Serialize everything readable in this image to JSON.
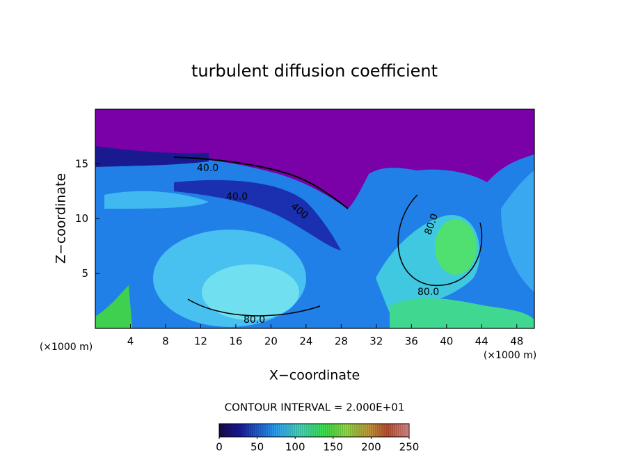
{
  "chart_data": {
    "type": "contour",
    "title": "turbulent diffusion coefficient",
    "x_label": "X−coordinate",
    "y_label": "Z−coordinate",
    "x_unit": "(×1000 m)",
    "y_unit": "(×1000 m)",
    "xlim": [
      0,
      50
    ],
    "ylim": [
      0,
      20
    ],
    "xticks": [
      4,
      8,
      12,
      16,
      20,
      24,
      28,
      32,
      36,
      40,
      44,
      48
    ],
    "yticks": [
      5,
      10,
      15
    ],
    "contour_interval": "CONTOUR INTERVAL = 2.000E+01",
    "contour_labels": [
      "40.0",
      "40.0",
      "400",
      "80.0",
      "80.0",
      "80.0"
    ],
    "colorbar": {
      "lim": [
        0,
        250
      ],
      "ticks": [
        0,
        50,
        100,
        150,
        200,
        250
      ],
      "colors": [
        "#1a0a40",
        "#1a1aa0",
        "#1f6fe0",
        "#3ab4f0",
        "#40e0b0",
        "#40e050",
        "#90e040",
        "#c0a040",
        "#c05030",
        "#e09090"
      ]
    }
  }
}
